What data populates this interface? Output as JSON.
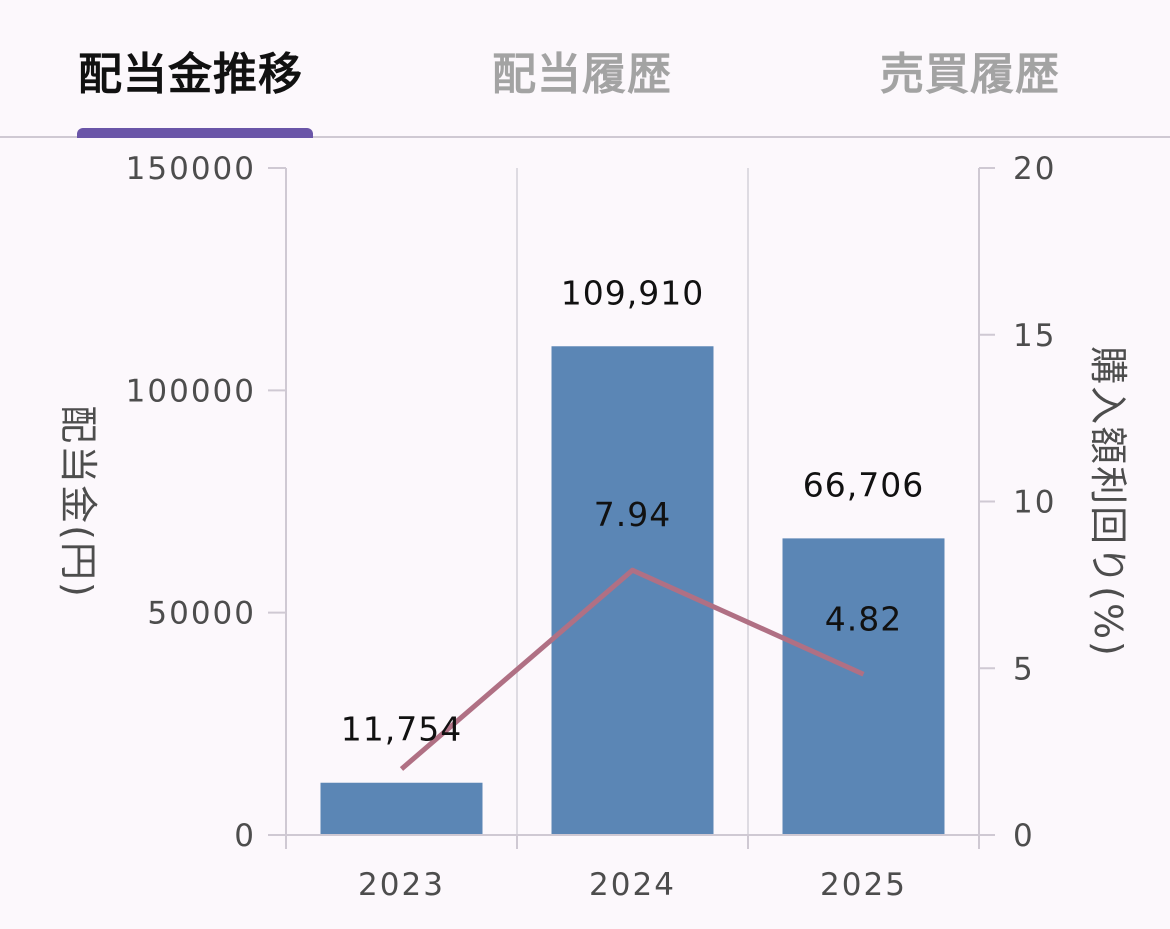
{
  "tabs": [
    {
      "label": "配当金推移",
      "active": true
    },
    {
      "label": "配当履歴",
      "active": false
    },
    {
      "label": "売買履歴",
      "active": false
    }
  ],
  "chart_data": {
    "type": "bar",
    "categories": [
      "2023",
      "2024",
      "2025"
    ],
    "series": [
      {
        "values": [
          11754,
          109910,
          66706
        ],
        "axis": "left",
        "kind": "bar",
        "color": "#5b86b5"
      },
      {
        "values": [
          1.98,
          7.94,
          4.82
        ],
        "axis": "right",
        "kind": "line",
        "color": "#b07084"
      }
    ],
    "bar_labels": [
      "11,754",
      "109,910",
      "66,706"
    ],
    "line_labels": [
      "",
      "7.94",
      "4.82"
    ],
    "ylabel": "配当金(円)",
    "y2label": "購入額利回り(%)",
    "ylim": [
      0,
      150000
    ],
    "y2lim": [
      0,
      20
    ],
    "yticks": [
      "0",
      "50000",
      "100000",
      "150000"
    ],
    "y2ticks": [
      "0",
      "5",
      "10",
      "15",
      "20"
    ],
    "grid": true
  }
}
